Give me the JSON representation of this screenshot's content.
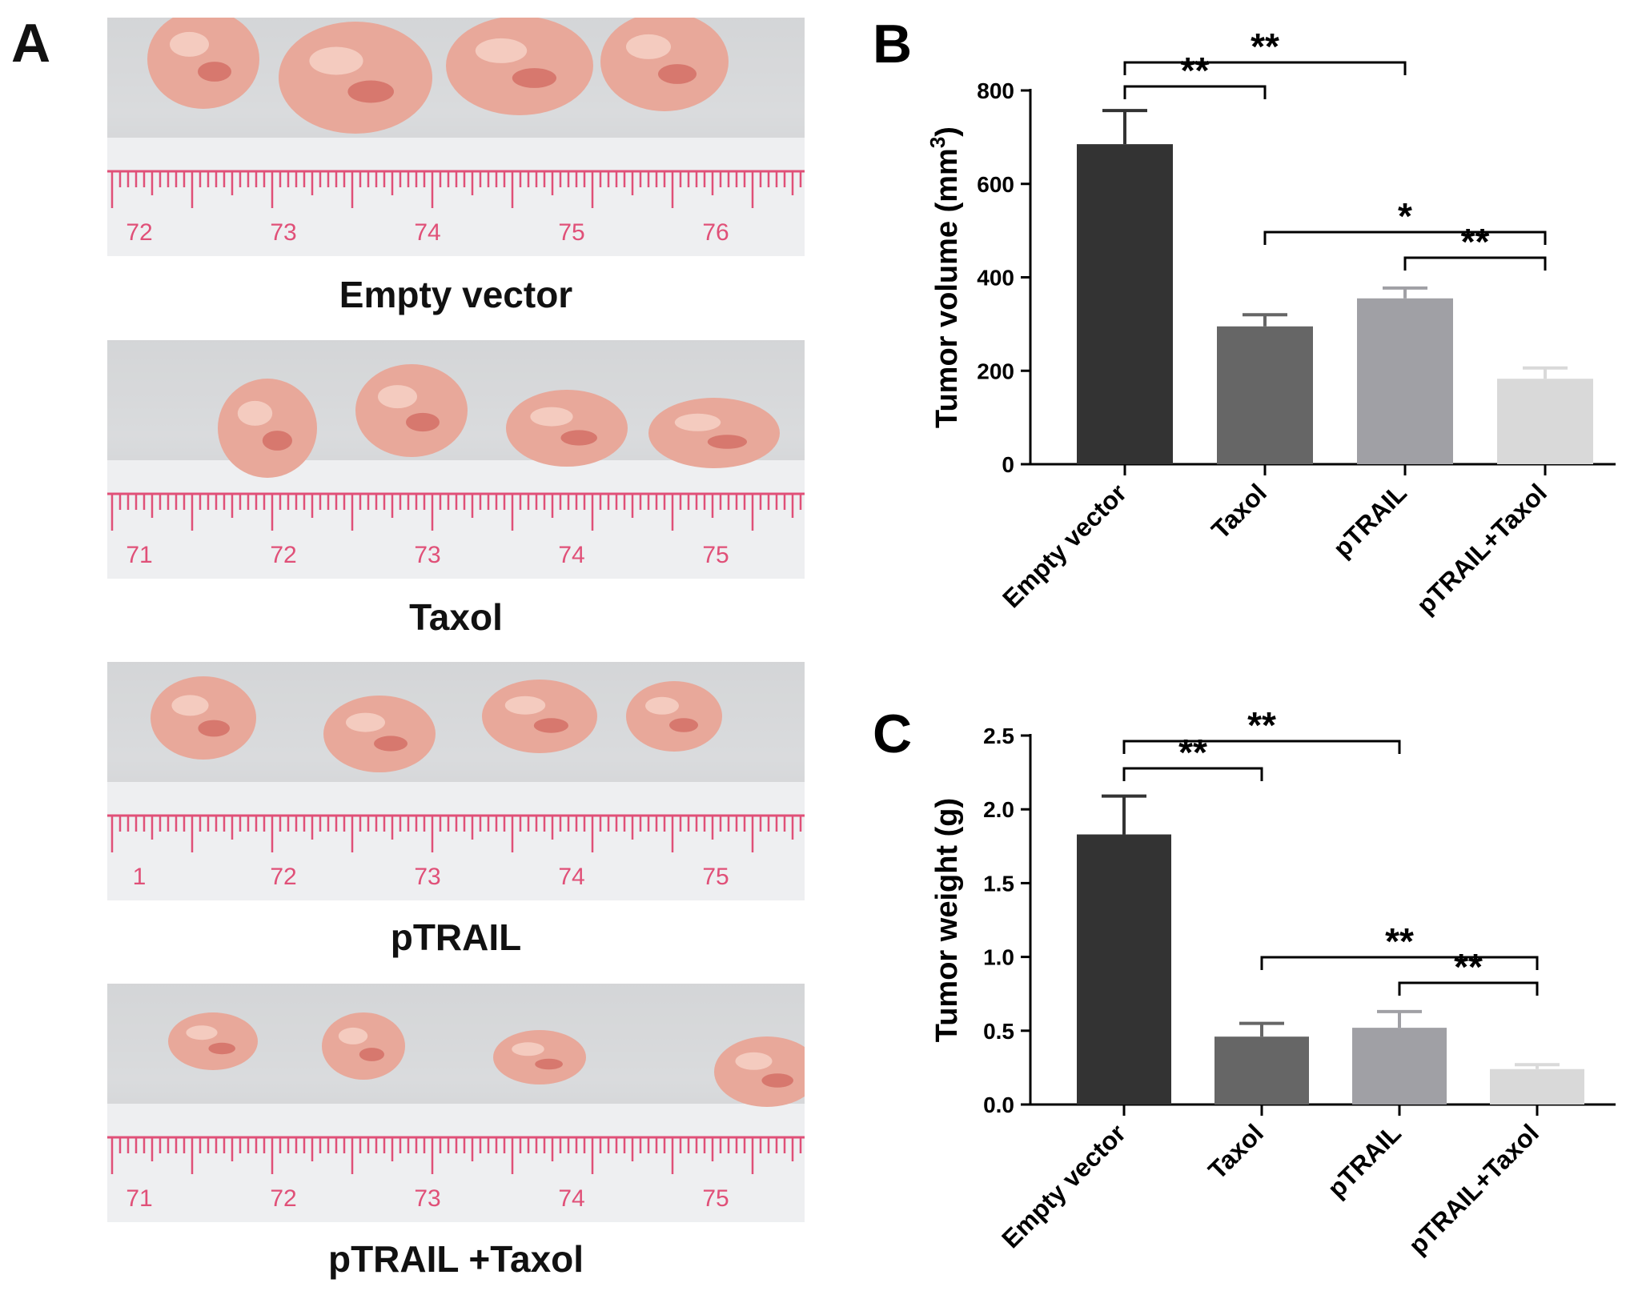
{
  "panel_a": {
    "letter": "A",
    "photos": [
      {
        "caption": "Empty vector",
        "ruler_labels": [
          "72",
          "73",
          "74",
          "75",
          "76"
        ],
        "tumor_count": 4
      },
      {
        "caption": "Taxol",
        "ruler_labels": [
          "71",
          "72",
          "73",
          "74",
          "75"
        ],
        "tumor_count": 4
      },
      {
        "caption": "pTRAIL",
        "ruler_labels": [
          "1",
          "72",
          "73",
          "74",
          "75"
        ],
        "tumor_count": 4
      },
      {
        "caption": "pTRAIL +Taxol",
        "ruler_labels": [
          "71",
          "72",
          "73",
          "74",
          "75"
        ],
        "tumor_count": 4
      }
    ]
  },
  "chart_data": [
    {
      "panel": "B",
      "type": "bar",
      "categories": [
        "Empty vector",
        "Taxol",
        "pTRAIL",
        "pTRAIL+Taxol"
      ],
      "values": [
        685,
        295,
        355,
        183
      ],
      "errors": [
        72,
        25,
        22,
        23
      ],
      "bar_colors": [
        "#333333",
        "#666666",
        "#a0a0a5",
        "#d9d9d9"
      ],
      "ylabel": "Tumor volume (mm",
      "ylabel_superscript": "3",
      "ylabel_close": ")",
      "ylim": [
        0,
        800
      ],
      "yticks": [
        "0",
        "200",
        "400",
        "600",
        "800"
      ],
      "significance": [
        {
          "from": 0,
          "to": 1,
          "label": "**"
        },
        {
          "from": 0,
          "to": 2,
          "label": "**"
        },
        {
          "from": 1,
          "to": 3,
          "label": "*"
        },
        {
          "from": 2,
          "to": 3,
          "label": "**"
        }
      ]
    },
    {
      "panel": "C",
      "type": "bar",
      "categories": [
        "Empty vector",
        "Taxol",
        "pTRAIL",
        "pTRAIL+Taxol"
      ],
      "values": [
        1.83,
        0.46,
        0.52,
        0.24
      ],
      "errors": [
        0.26,
        0.09,
        0.11,
        0.03
      ],
      "bar_colors": [
        "#333333",
        "#666666",
        "#a0a0a5",
        "#d9d9d9"
      ],
      "ylabel": "Tumor weight (g)",
      "ylim": [
        0,
        2.5
      ],
      "yticks": [
        "0.0",
        "0.5",
        "1.0",
        "1.5",
        "2.0",
        "2.5"
      ],
      "significance": [
        {
          "from": 0,
          "to": 1,
          "label": "**"
        },
        {
          "from": 0,
          "to": 2,
          "label": "**"
        },
        {
          "from": 1,
          "to": 3,
          "label": "**"
        },
        {
          "from": 2,
          "to": 3,
          "label": "**"
        }
      ]
    }
  ]
}
